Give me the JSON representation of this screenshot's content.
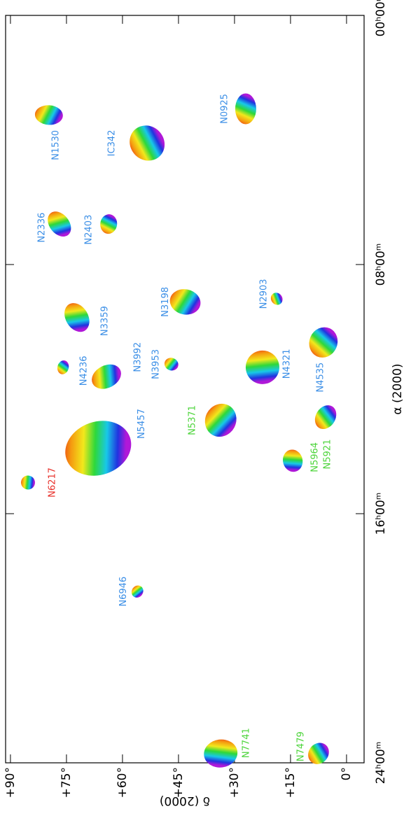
{
  "chart_data": {
    "type": "scatter",
    "x_label": "α (2000)",
    "y_label": "δ (2000)",
    "xlim": [
      24,
      0
    ],
    "ylim": [
      -4.7,
      91.3
    ],
    "xticks": [
      {
        "value": 24,
        "label": "24ʰ00ᵐ"
      },
      {
        "value": 16,
        "label": "16ʰ00ᵐ"
      },
      {
        "value": 8,
        "label": "08ʰ00ᵐ"
      },
      {
        "value": 0,
        "label": "00ʰ00ᵐ"
      }
    ],
    "yticks": [
      {
        "value": 90,
        "label": "+90°"
      },
      {
        "value": 75,
        "label": "+75°"
      },
      {
        "value": 60,
        "label": "+60°"
      },
      {
        "value": 45,
        "label": "+45°"
      },
      {
        "value": 30,
        "label": "+30°"
      },
      {
        "value": 15,
        "label": "+15°"
      },
      {
        "value": 0,
        "label": "0°"
      }
    ],
    "points": [
      {
        "label": "N0925",
        "ra": 3.0,
        "dec": 27,
        "color": "#3a8ee6"
      },
      {
        "label": "IC342",
        "ra": 4.1,
        "dec": 53.4,
        "color": "#3a8ee6"
      },
      {
        "label": "N1530",
        "ra": 3.2,
        "dec": 79.7,
        "color": "#3a8ee6"
      },
      {
        "label": "N2336",
        "ra": 6.7,
        "dec": 76.9,
        "color": "#3a8ee6"
      },
      {
        "label": "N2403",
        "ra": 6.7,
        "dec": 63.7,
        "color": "#3a8ee6"
      },
      {
        "label": "N2903",
        "ra": 9.1,
        "dec": 18.7,
        "color": "#3a8ee6"
      },
      {
        "label": "N3198",
        "ra": 9.2,
        "dec": 43.2,
        "color": "#3a8ee6"
      },
      {
        "label": "N3359",
        "ra": 9.7,
        "dec": 72.2,
        "color": "#3a8ee6"
      },
      {
        "label": "N4236",
        "ra": 11.3,
        "dec": 75.9,
        "color": "#3a8ee6"
      },
      {
        "label": "N3992",
        "ra": 11.6,
        "dec": 64.3,
        "color": "#3a8ee6"
      },
      {
        "label": "N3953",
        "ra": 11.2,
        "dec": 46.9,
        "color": "#3a8ee6"
      },
      {
        "label": "N4321",
        "ra": 11.3,
        "dec": 22.5,
        "color": "#3a8ee6"
      },
      {
        "label": "N4535",
        "ra": 10.5,
        "dec": 6.2,
        "color": "#3a8ee6"
      },
      {
        "label": "N5457",
        "ra": 13.9,
        "dec": 66.5,
        "color": "#3a8ee6"
      },
      {
        "label": "N5371",
        "ra": 13.0,
        "dec": 33.7,
        "color": "#4cd43a"
      },
      {
        "label": "N5964",
        "ra": 14.3,
        "dec": 14.4,
        "color": "#4cd43a"
      },
      {
        "label": "N5921",
        "ra": 12.9,
        "dec": 5.6,
        "color": "#4cd43a"
      },
      {
        "label": "N6217",
        "ra": 15.0,
        "dec": 85.3,
        "color": "#e8302a"
      },
      {
        "label": "N6946",
        "ra": 18.5,
        "dec": 56.0,
        "color": "#3a8ee6"
      },
      {
        "label": "N7741",
        "ra": 23.7,
        "dec": 33.7,
        "color": "#4cd43a"
      },
      {
        "label": "N7479",
        "ra": 23.7,
        "dec": 7.5,
        "color": "#4cd43a"
      }
    ]
  }
}
